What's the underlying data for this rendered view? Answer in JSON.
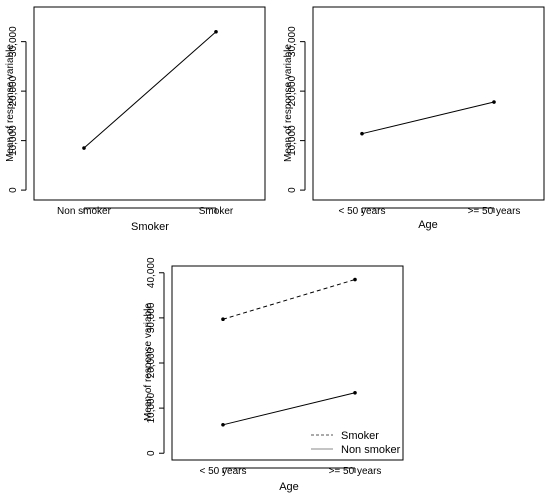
{
  "chart_data": [
    {
      "type": "line",
      "categories": [
        "Non smoker",
        "Smoker"
      ],
      "series": [
        {
          "values": [
            8500,
            32000
          ]
        }
      ],
      "xlabel": "Smoker",
      "ylabel": "Mean of response variable",
      "yticks": [
        "0",
        "10,000",
        "20,000",
        "30,000"
      ],
      "ytick_values": [
        0,
        10000,
        20000,
        30000
      ],
      "ylim": [
        -2000,
        37000
      ],
      "grid": false,
      "legend": null
    },
    {
      "type": "line",
      "categories": [
        "< 50 years",
        ">= 50 years"
      ],
      "series": [
        {
          "values": [
            11400,
            17800
          ]
        }
      ],
      "xlabel": "Age",
      "ylabel": "Mean of response variable",
      "yticks": [
        "0",
        "10,000",
        "20,000",
        "30,000"
      ],
      "ytick_values": [
        0,
        10000,
        20000,
        30000
      ],
      "ylim": [
        -2000,
        37000
      ],
      "grid": false,
      "legend": null
    },
    {
      "type": "line",
      "categories": [
        "< 50 years",
        ">= 50 years"
      ],
      "series": [
        {
          "name": "Smoker",
          "values": [
            29700,
            38500
          ],
          "style": "dashed"
        },
        {
          "name": "Non smoker",
          "values": [
            6300,
            13400
          ],
          "style": "solid"
        }
      ],
      "xlabel": "Age",
      "ylabel": "Mean of response variable",
      "yticks": [
        "0",
        "10,000",
        "20,000",
        "30,000",
        "40,000"
      ],
      "ytick_values": [
        0,
        10000,
        20000,
        30000,
        40000
      ],
      "ylim": [
        -1500,
        41500
      ],
      "grid": false,
      "legend": "bottom-right"
    }
  ]
}
